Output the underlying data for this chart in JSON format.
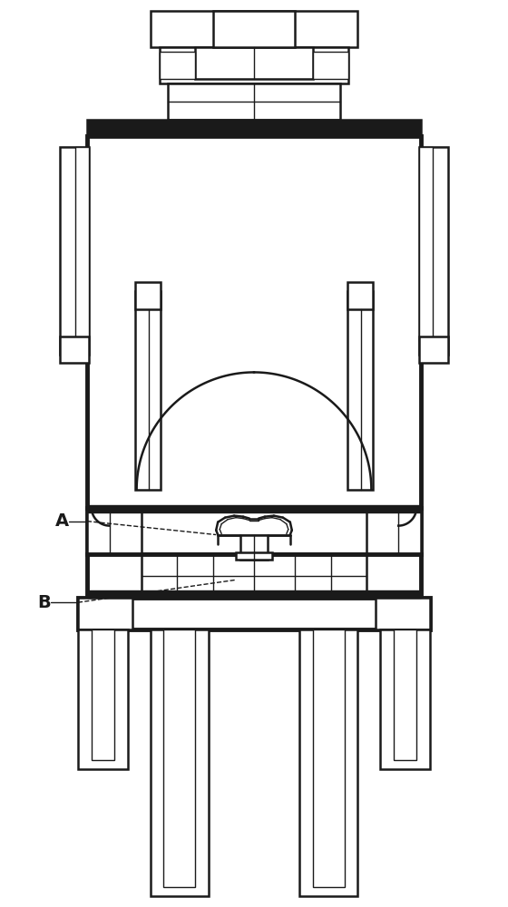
{
  "bg_color": "#ffffff",
  "line_color": "#1a1a1a",
  "lw1": 1.0,
  "lw2": 1.8,
  "lw3": 3.5,
  "label_A": "A",
  "label_B": "B",
  "fig_width": 5.6,
  "fig_height": 10.0
}
